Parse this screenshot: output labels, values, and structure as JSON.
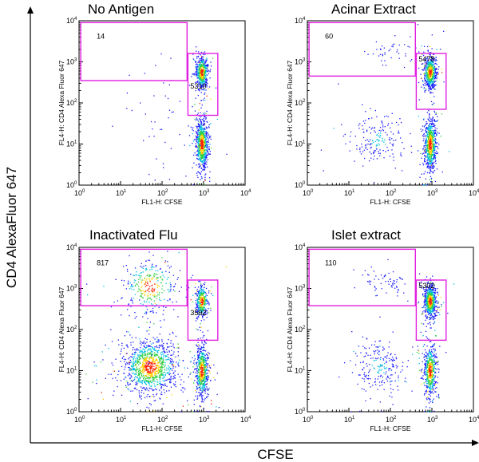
{
  "figure": {
    "ylabel": "CD4 AlexaFluor 647",
    "xlabel": "CFSE"
  },
  "chart_data": [
    {
      "type": "scatter",
      "title": "No Antigen",
      "xlabel": "FL1-H: CFSE",
      "ylabel": "FL4-H: CD4 Alexa Fluor 647",
      "xscale": "log",
      "yscale": "log",
      "xlim": [
        1,
        10000
      ],
      "ylim": [
        1,
        10000
      ],
      "xticks": [
        "10",
        "10",
        "10",
        "10",
        "10"
      ],
      "tick_exponents": [
        "0",
        "1",
        "2",
        "3",
        "4"
      ],
      "gates": [
        {
          "x": [
            1.1,
            400
          ],
          "y": [
            350,
            9000
          ],
          "count": "14"
        },
        {
          "x": [
            420,
            2200
          ],
          "y": [
            50,
            1600
          ],
          "count": "5310"
        }
      ],
      "populations": [
        {
          "cx_log": 2.95,
          "cy_log": 2.75,
          "n": 500
        },
        {
          "cx_log": 2.95,
          "cy_log": 1.0,
          "n": 700
        },
        {
          "cx_log": 2.0,
          "cy_log": 1.6,
          "n": 50,
          "diffuse": true
        }
      ]
    },
    {
      "type": "scatter",
      "title": "Acinar Extract",
      "xlabel": "FL1-H: CFSE",
      "ylabel": "FL4-H: CD4 Alexa Fluor 647",
      "xscale": "log",
      "yscale": "log",
      "xlim": [
        1,
        10000
      ],
      "ylim": [
        1,
        10000
      ],
      "gates": [
        {
          "x": [
            1.1,
            400
          ],
          "y": [
            450,
            9000
          ],
          "count": "60"
        },
        {
          "x": [
            420,
            2200
          ],
          "y": [
            70,
            1600
          ],
          "count": "5478"
        }
      ],
      "populations": [
        {
          "cx_log": 2.95,
          "cy_log": 2.75,
          "n": 550
        },
        {
          "cx_log": 2.95,
          "cy_log": 1.0,
          "n": 700
        },
        {
          "cx_log": 1.7,
          "cy_log": 1.1,
          "n": 180
        },
        {
          "cx_log": 2.0,
          "cy_log": 3.25,
          "n": 45
        }
      ]
    },
    {
      "type": "scatter",
      "title": "Inactivated Flu",
      "xlabel": "FL1-H: CFSE",
      "ylabel": "FL4-H: CD4 Alexa Fluor 647",
      "xscale": "log",
      "yscale": "log",
      "xlim": [
        1,
        10000
      ],
      "ylim": [
        1,
        10000
      ],
      "gates": [
        {
          "x": [
            1.1,
            400
          ],
          "y": [
            380,
            9000
          ],
          "count": "817"
        },
        {
          "x": [
            420,
            2200
          ],
          "y": [
            55,
            1600
          ],
          "count": "3592"
        }
      ],
      "populations": [
        {
          "cx_log": 1.7,
          "cy_log": 3.05,
          "n": 320
        },
        {
          "cx_log": 1.7,
          "cy_log": 1.1,
          "n": 1100
        },
        {
          "cx_log": 2.95,
          "cy_log": 2.7,
          "n": 320
        },
        {
          "cx_log": 2.95,
          "cy_log": 1.0,
          "n": 600
        }
      ]
    },
    {
      "type": "scatter",
      "title": "Islet extract",
      "xlabel": "FL1-H: CFSE",
      "ylabel": "FL4-H: CD4 Alexa Fluor 647",
      "xscale": "log",
      "yscale": "log",
      "xlim": [
        1,
        10000
      ],
      "ylim": [
        1,
        10000
      ],
      "gates": [
        {
          "x": [
            1.1,
            400
          ],
          "y": [
            380,
            9000
          ],
          "count": "110"
        },
        {
          "x": [
            420,
            2200
          ],
          "y": [
            55,
            1600
          ],
          "count": "5302"
        }
      ],
      "populations": [
        {
          "cx_log": 1.9,
          "cy_log": 3.15,
          "n": 70
        },
        {
          "cx_log": 1.7,
          "cy_log": 1.1,
          "n": 220
        },
        {
          "cx_log": 2.95,
          "cy_log": 2.7,
          "n": 650
        },
        {
          "cx_log": 2.95,
          "cy_log": 1.0,
          "n": 550
        }
      ]
    }
  ],
  "colors": {
    "gate": "#e020e0",
    "low": "#1a1aff",
    "high": "#ff2000"
  }
}
